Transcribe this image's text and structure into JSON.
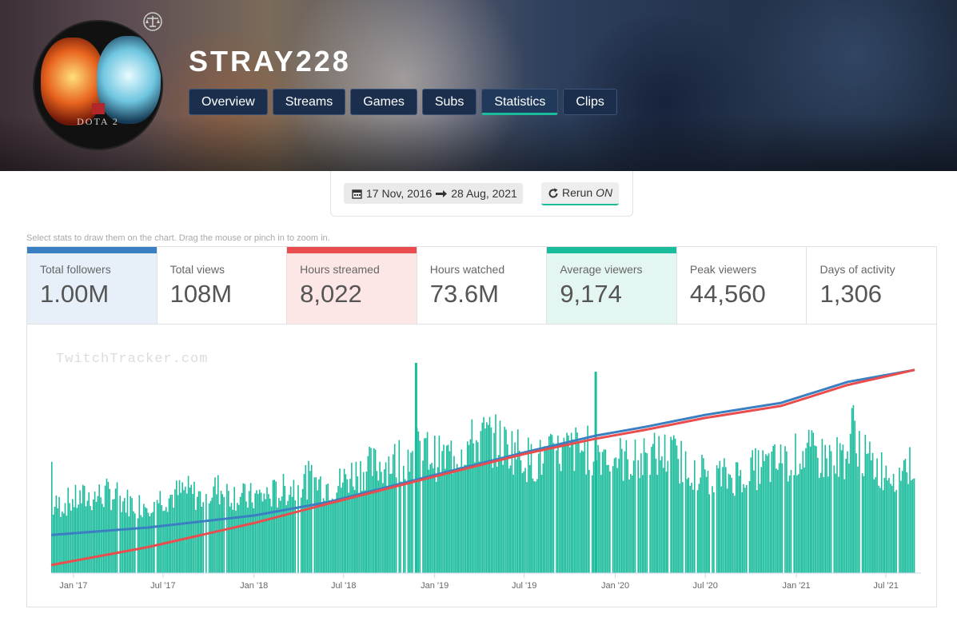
{
  "channel": {
    "name": "STRAY228"
  },
  "nav": {
    "tabs": [
      {
        "label": "Overview",
        "active": false
      },
      {
        "label": "Streams",
        "active": false
      },
      {
        "label": "Games",
        "active": false
      },
      {
        "label": "Subs",
        "active": false
      },
      {
        "label": "Statistics",
        "active": true
      },
      {
        "label": "Clips",
        "active": false
      }
    ]
  },
  "avatar": {
    "text": "DOTA 2"
  },
  "date_range": {
    "start": "17 Nov, 2016",
    "end": "28 Aug, 2021"
  },
  "rerun": {
    "label": "Rerun",
    "state": "ON"
  },
  "hint": "Select stats to draw them on the chart. Drag the mouse or pinch in to zoom in.",
  "stats": [
    {
      "label": "Total followers",
      "value": "1.00M",
      "selected": "blue"
    },
    {
      "label": "Total views",
      "value": "108M",
      "selected": ""
    },
    {
      "label": "Hours streamed",
      "value": "8,022",
      "selected": "red"
    },
    {
      "label": "Hours watched",
      "value": "73.6M",
      "selected": ""
    },
    {
      "label": "Average viewers",
      "value": "9,174",
      "selected": "green"
    },
    {
      "label": "Peak viewers",
      "value": "44,560",
      "selected": ""
    },
    {
      "label": "Days of activity",
      "value": "1,306",
      "selected": ""
    }
  ],
  "watermark": "TwitchTracker.com",
  "colors": {
    "followers": "#3a7fc1",
    "hours_streamed": "#e94d4d",
    "average_viewers": "#1abc9c",
    "nav_bg": "#1b2f4d"
  },
  "chart_data": {
    "type": "bar",
    "x_range": [
      "2016-11-17",
      "2021-08-28"
    ],
    "x_ticks": [
      "Jan '17",
      "Jul '17",
      "Jan '18",
      "Jul '18",
      "Jan '19",
      "Jul '19",
      "Jan '20",
      "Jul '20",
      "Jan '21",
      "Jul '21"
    ],
    "series": [
      {
        "name": "Average viewers",
        "type": "bar",
        "color": "#1abc9c",
        "points": [
          [
            "2016-11-20",
            5200
          ],
          [
            "2016-12-15",
            5600
          ],
          [
            "2017-01-15",
            5900
          ],
          [
            "2017-02-15",
            6100
          ],
          [
            "2017-03-15",
            6300
          ],
          [
            "2017-04-15",
            5700
          ],
          [
            "2017-05-15",
            5400
          ],
          [
            "2017-06-15",
            5900
          ],
          [
            "2017-07-15",
            6100
          ],
          [
            "2017-08-15",
            6500
          ],
          [
            "2017-09-15",
            6000
          ],
          [
            "2017-10-15",
            6700
          ],
          [
            "2017-11-15",
            6300
          ],
          [
            "2017-12-15",
            5900
          ],
          [
            "2018-01-15",
            6100
          ],
          [
            "2018-02-15",
            6300
          ],
          [
            "2018-03-15",
            6800
          ],
          [
            "2018-04-15",
            7400
          ],
          [
            "2018-05-15",
            7100
          ],
          [
            "2018-06-15",
            6900
          ],
          [
            "2018-07-15",
            7800
          ],
          [
            "2018-08-15",
            8300
          ],
          [
            "2018-09-15",
            8600
          ],
          [
            "2018-10-15",
            9000
          ],
          [
            "2018-11-15",
            9700
          ],
          [
            "2018-11-22",
            16500
          ],
          [
            "2018-12-15",
            9600
          ],
          [
            "2019-01-15",
            8900
          ],
          [
            "2019-02-15",
            9700
          ],
          [
            "2019-03-15",
            10200
          ],
          [
            "2019-04-15",
            10800
          ],
          [
            "2019-05-15",
            10200
          ],
          [
            "2019-06-15",
            9800
          ],
          [
            "2019-07-15",
            8800
          ],
          [
            "2019-08-15",
            9100
          ],
          [
            "2019-09-15",
            9600
          ],
          [
            "2019-10-15",
            9800
          ],
          [
            "2019-11-20",
            15800
          ],
          [
            "2019-12-15",
            9600
          ],
          [
            "2020-01-15",
            9000
          ],
          [
            "2020-02-15",
            8800
          ],
          [
            "2020-03-15",
            9300
          ],
          [
            "2020-04-15",
            9500
          ],
          [
            "2020-05-15",
            8800
          ],
          [
            "2020-06-15",
            8100
          ],
          [
            "2020-07-15",
            7700
          ],
          [
            "2020-08-15",
            7600
          ],
          [
            "2020-09-15",
            7900
          ],
          [
            "2020-10-15",
            8300
          ],
          [
            "2020-11-15",
            8600
          ],
          [
            "2020-12-15",
            8900
          ],
          [
            "2021-01-15",
            9600
          ],
          [
            "2021-02-15",
            9200
          ],
          [
            "2021-03-15",
            9000
          ],
          [
            "2021-04-15",
            9500
          ],
          [
            "2021-04-25",
            11800
          ],
          [
            "2021-05-15",
            9200
          ],
          [
            "2021-06-15",
            8300
          ],
          [
            "2021-07-15",
            8100
          ],
          [
            "2021-08-15",
            8600
          ]
        ]
      },
      {
        "name": "Total followers",
        "type": "line",
        "color": "#3a7fc1",
        "points": [
          [
            "2016-11-17",
            2000
          ],
          [
            "2017-06-01",
            2500
          ],
          [
            "2018-01-01",
            3300
          ],
          [
            "2018-06-01",
            4200
          ],
          [
            "2019-01-01",
            6000
          ],
          [
            "2019-07-01",
            7500
          ],
          [
            "2019-11-20",
            8600
          ],
          [
            "2020-03-01",
            9200
          ],
          [
            "2020-07-01",
            10000
          ],
          [
            "2020-12-01",
            10800
          ],
          [
            "2021-04-15",
            12200
          ],
          [
            "2021-08-28",
            13000
          ]
        ]
      },
      {
        "name": "Hours streamed",
        "type": "line",
        "color": "#e94d4d",
        "points": [
          [
            "2016-11-17",
            0
          ],
          [
            "2017-06-01",
            1200
          ],
          [
            "2018-01-01",
            2800
          ],
          [
            "2018-06-01",
            4100
          ],
          [
            "2019-01-01",
            5900
          ],
          [
            "2019-07-01",
            7400
          ],
          [
            "2019-11-20",
            8400
          ],
          [
            "2020-03-01",
            9000
          ],
          [
            "2020-07-01",
            9800
          ],
          [
            "2020-12-01",
            10600
          ],
          [
            "2021-04-15",
            12000
          ],
          [
            "2021-08-28",
            13000
          ]
        ]
      }
    ],
    "grid": false,
    "legend": "none"
  }
}
